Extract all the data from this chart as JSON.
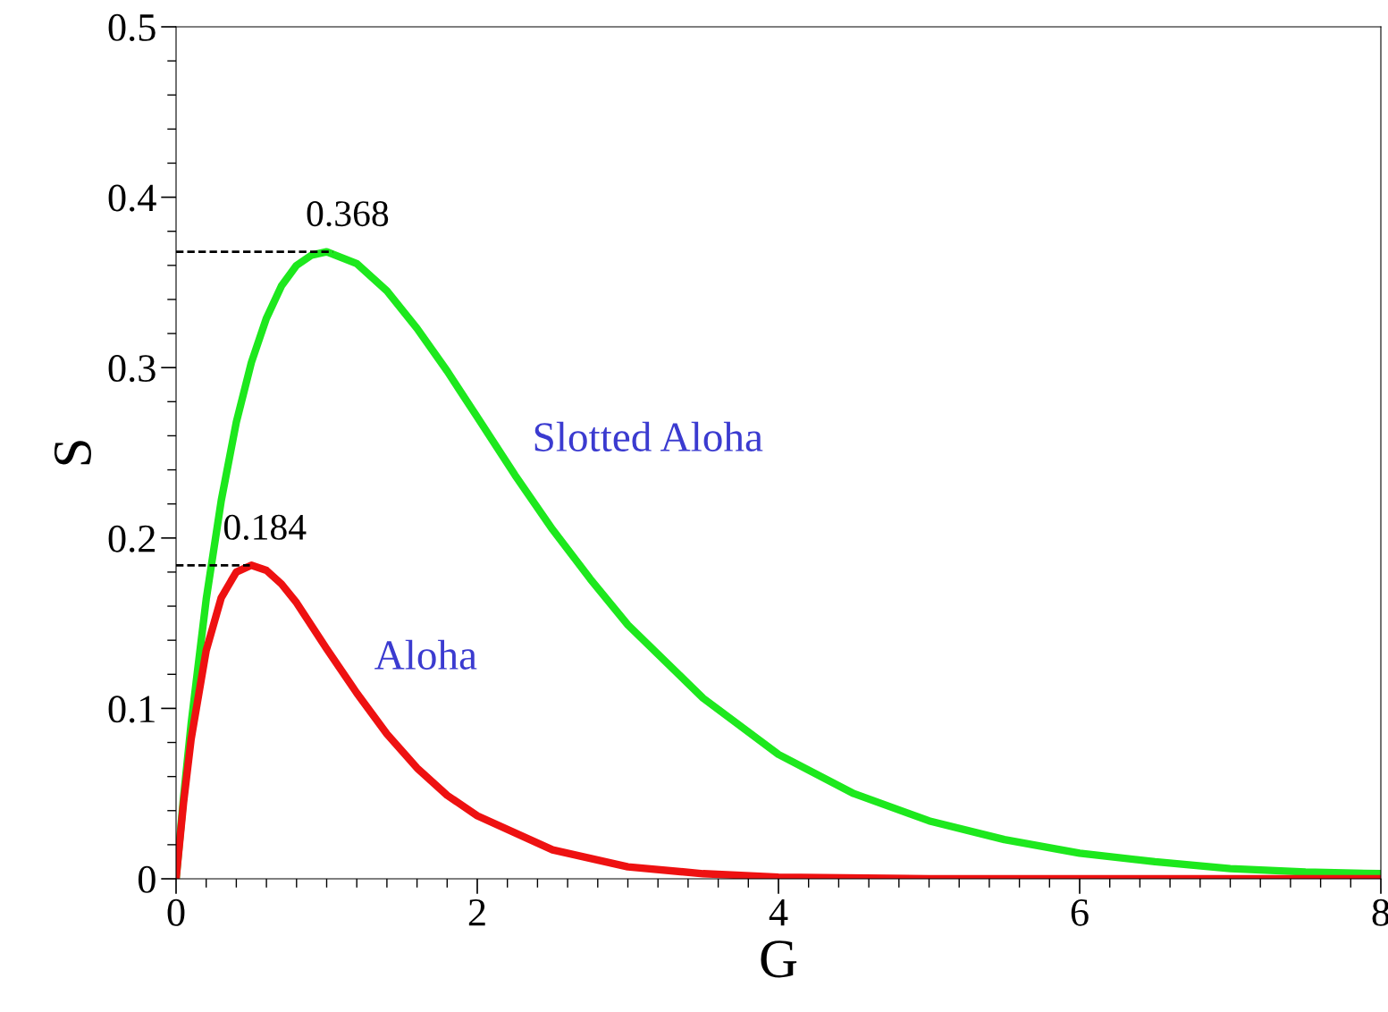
{
  "chart_data": {
    "type": "line",
    "xlabel": "G",
    "ylabel": "S",
    "xlim": [
      0,
      8
    ],
    "ylim": [
      0,
      0.5
    ],
    "xticks": [
      0,
      {
        "value": 0.2,
        "label": null
      },
      {
        "value": 0.4,
        "label": null
      },
      {
        "value": 0.6,
        "label": null
      },
      {
        "value": 0.8,
        "label": null
      },
      {
        "value": 1,
        "label": null
      },
      {
        "value": 1.2,
        "label": null
      },
      {
        "value": 1.4,
        "label": null
      },
      {
        "value": 1.6,
        "label": null
      },
      {
        "value": 1.8,
        "label": null
      },
      2,
      {
        "value": 2.2,
        "label": null
      },
      {
        "value": 2.4,
        "label": null
      },
      {
        "value": 2.6,
        "label": null
      },
      {
        "value": 2.8,
        "label": null
      },
      {
        "value": 3,
        "label": null
      },
      {
        "value": 3.2,
        "label": null
      },
      {
        "value": 3.4,
        "label": null
      },
      {
        "value": 3.6,
        "label": null
      },
      {
        "value": 3.8,
        "label": null
      },
      4,
      {
        "value": 4.2,
        "label": null
      },
      {
        "value": 4.4,
        "label": null
      },
      {
        "value": 4.6,
        "label": null
      },
      {
        "value": 4.8,
        "label": null
      },
      {
        "value": 5,
        "label": null
      },
      {
        "value": 5.2,
        "label": null
      },
      {
        "value": 5.4,
        "label": null
      },
      {
        "value": 5.6,
        "label": null
      },
      {
        "value": 5.8,
        "label": null
      },
      6,
      {
        "value": 6.2,
        "label": null
      },
      {
        "value": 6.4,
        "label": null
      },
      {
        "value": 6.6,
        "label": null
      },
      {
        "value": 6.8,
        "label": null
      },
      {
        "value": 7,
        "label": null
      },
      {
        "value": 7.2,
        "label": null
      },
      {
        "value": 7.4,
        "label": null
      },
      {
        "value": 7.6,
        "label": null
      },
      {
        "value": 7.8,
        "label": null
      },
      8
    ],
    "yticks": [
      0,
      {
        "value": 0.02,
        "label": null
      },
      {
        "value": 0.04,
        "label": null
      },
      {
        "value": 0.06,
        "label": null
      },
      {
        "value": 0.08,
        "label": null
      },
      0.1,
      {
        "value": 0.12,
        "label": null
      },
      {
        "value": 0.14,
        "label": null
      },
      {
        "value": 0.16,
        "label": null
      },
      {
        "value": 0.18,
        "label": null
      },
      0.2,
      {
        "value": 0.22,
        "label": null
      },
      {
        "value": 0.24,
        "label": null
      },
      {
        "value": 0.26,
        "label": null
      },
      {
        "value": 0.28,
        "label": null
      },
      0.3,
      {
        "value": 0.32,
        "label": null
      },
      {
        "value": 0.34,
        "label": null
      },
      {
        "value": 0.36,
        "label": null
      },
      {
        "value": 0.38,
        "label": null
      },
      0.4,
      {
        "value": 0.42,
        "label": null
      },
      {
        "value": 0.44,
        "label": null
      },
      {
        "value": 0.46,
        "label": null
      },
      {
        "value": 0.48,
        "label": null
      },
      0.5
    ],
    "grid": false,
    "legend": false,
    "marker": "none",
    "series": [
      {
        "name": "Slotted Aloha",
        "color": "#1de81d",
        "x": [
          0,
          0.05,
          0.1,
          0.2,
          0.3,
          0.4,
          0.5,
          0.6,
          0.7,
          0.8,
          0.9,
          1.0,
          1.2,
          1.4,
          1.6,
          1.8,
          2.0,
          2.25,
          2.5,
          2.75,
          3,
          3.5,
          4,
          4.5,
          5,
          5.5,
          6,
          6.5,
          7,
          7.5,
          8
        ],
        "values": [
          0,
          0.048,
          0.091,
          0.164,
          0.222,
          0.268,
          0.303,
          0.329,
          0.348,
          0.36,
          0.366,
          0.368,
          0.361,
          0.345,
          0.323,
          0.298,
          0.271,
          0.237,
          0.205,
          0.176,
          0.149,
          0.106,
          0.073,
          0.05,
          0.034,
          0.023,
          0.015,
          0.01,
          0.006,
          0.004,
          0.003
        ],
        "line_style": "solid"
      },
      {
        "name": "Aloha",
        "color": "#ee1111",
        "x": [
          0,
          0.05,
          0.1,
          0.2,
          0.3,
          0.4,
          0.5,
          0.6,
          0.7,
          0.8,
          1.0,
          1.2,
          1.4,
          1.6,
          1.8,
          2.0,
          2.5,
          3,
          3.5,
          4,
          5,
          6,
          7,
          8
        ],
        "values": [
          0,
          0.045,
          0.082,
          0.134,
          0.165,
          0.18,
          0.184,
          0.181,
          0.173,
          0.162,
          0.135,
          0.109,
          0.085,
          0.065,
          0.049,
          0.037,
          0.017,
          0.007,
          0.003,
          0.001,
          0,
          0,
          0,
          0
        ],
        "line_style": "solid"
      },
      {
        "color": "#000000",
        "x": [
          0,
          1.04
        ],
        "values": [
          0.368,
          0.368
        ],
        "line_style": "dashed",
        "value_labels": [
          null,
          "0.368"
        ]
      },
      {
        "color": "#000000",
        "x": [
          0,
          0.49
        ],
        "values": [
          0.184,
          0.184
        ],
        "line_style": "dashed",
        "value_labels": [
          null,
          "0.184"
        ]
      }
    ]
  }
}
